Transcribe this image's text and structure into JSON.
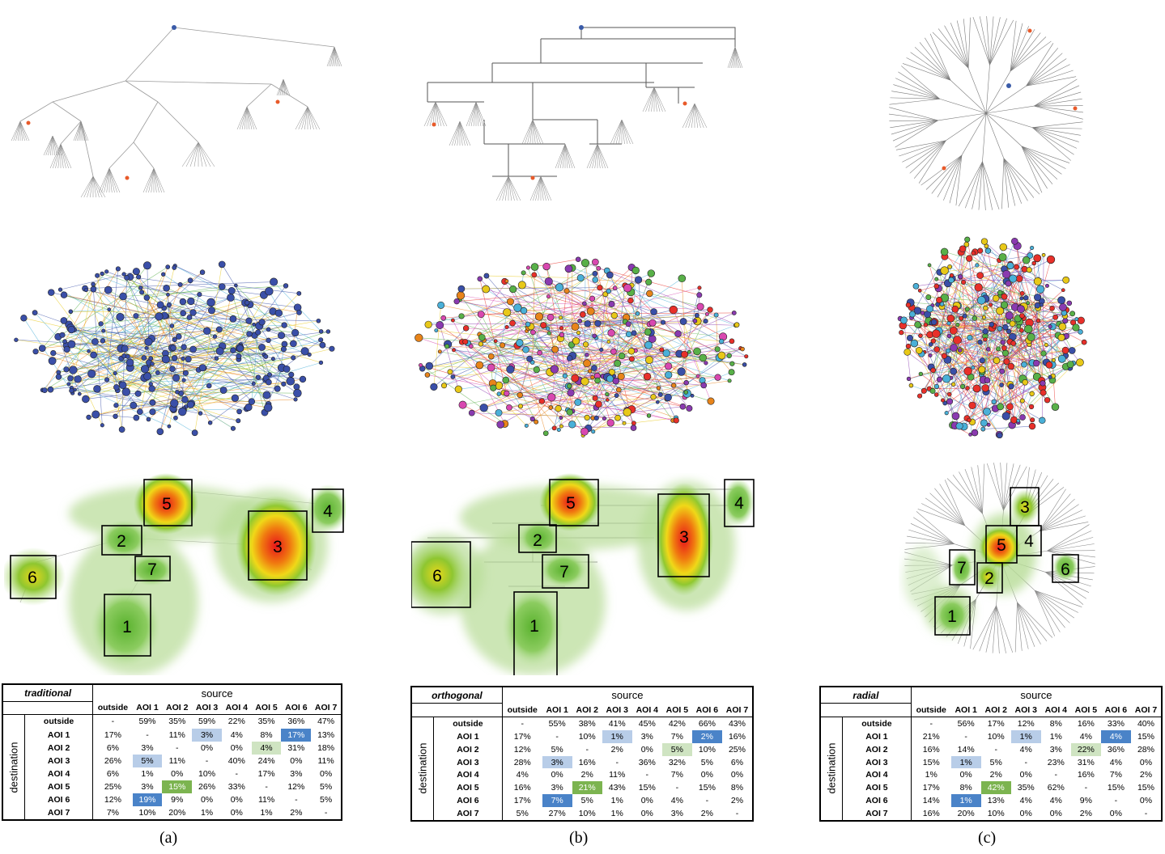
{
  "captions": [
    "(a)",
    "(b)",
    "(c)"
  ],
  "panels": [
    {
      "id": "a",
      "header": "traditional",
      "aois": [
        {
          "n": "1"
        },
        {
          "n": "2"
        },
        {
          "n": "3"
        },
        {
          "n": "4"
        },
        {
          "n": "5"
        },
        {
          "n": "6"
        },
        {
          "n": "7"
        }
      ]
    },
    {
      "id": "b",
      "header": "orthogonal",
      "aois": [
        {
          "n": "1"
        },
        {
          "n": "2"
        },
        {
          "n": "3"
        },
        {
          "n": "4"
        },
        {
          "n": "5"
        },
        {
          "n": "6"
        },
        {
          "n": "7"
        }
      ]
    },
    {
      "id": "c",
      "header": "radial",
      "aois": [
        {
          "n": "1"
        },
        {
          "n": "2"
        },
        {
          "n": "3"
        },
        {
          "n": "4"
        },
        {
          "n": "5"
        },
        {
          "n": "6"
        },
        {
          "n": "7"
        }
      ]
    }
  ],
  "table_common": {
    "source_label": "source",
    "destination_label": "destination",
    "columns": [
      "outside",
      "AOI 1",
      "AOI 2",
      "AOI 3",
      "AOI 4",
      "AOI 5",
      "AOI 6",
      "AOI 7"
    ],
    "rows": [
      "outside",
      "AOI 1",
      "AOI 2",
      "AOI 3",
      "AOI 4",
      "AOI 5",
      "AOI 6",
      "AOI 7"
    ]
  },
  "tables": [
    {
      "cells": [
        [
          "-",
          "59%",
          "35%",
          "59%",
          "22%",
          "35%",
          "36%",
          "47%"
        ],
        [
          "17%",
          "-",
          "11%",
          "3%",
          "4%",
          "8%",
          "17%",
          "13%"
        ],
        [
          "6%",
          "3%",
          "-",
          "0%",
          "0%",
          "4%",
          "31%",
          "18%"
        ],
        [
          "26%",
          "5%",
          "11%",
          "-",
          "40%",
          "24%",
          "0%",
          "11%"
        ],
        [
          "6%",
          "1%",
          "0%",
          "10%",
          "-",
          "17%",
          "3%",
          "0%"
        ],
        [
          "25%",
          "3%",
          "15%",
          "26%",
          "33%",
          "-",
          "12%",
          "5%"
        ],
        [
          "12%",
          "19%",
          "9%",
          "0%",
          "0%",
          "11%",
          "-",
          "5%"
        ],
        [
          "7%",
          "10%",
          "20%",
          "1%",
          "0%",
          "1%",
          "2%",
          "-"
        ]
      ],
      "highlights": [
        [
          1,
          3,
          "lb"
        ],
        [
          1,
          6,
          "db"
        ],
        [
          2,
          5,
          "lg"
        ],
        [
          3,
          1,
          "lb"
        ],
        [
          5,
          2,
          "dg"
        ],
        [
          6,
          1,
          "db"
        ]
      ]
    },
    {
      "cells": [
        [
          "-",
          "55%",
          "38%",
          "41%",
          "45%",
          "42%",
          "66%",
          "43%"
        ],
        [
          "17%",
          "-",
          "10%",
          "1%",
          "3%",
          "7%",
          "2%",
          "16%"
        ],
        [
          "12%",
          "5%",
          "-",
          "2%",
          "0%",
          "5%",
          "10%",
          "25%"
        ],
        [
          "28%",
          "3%",
          "16%",
          "-",
          "36%",
          "32%",
          "5%",
          "6%"
        ],
        [
          "4%",
          "0%",
          "2%",
          "11%",
          "-",
          "7%",
          "0%",
          "0%"
        ],
        [
          "16%",
          "3%",
          "21%",
          "43%",
          "15%",
          "-",
          "15%",
          "8%"
        ],
        [
          "17%",
          "7%",
          "5%",
          "1%",
          "0%",
          "4%",
          "-",
          "2%"
        ],
        [
          "5%",
          "27%",
          "10%",
          "1%",
          "0%",
          "3%",
          "2%",
          "-"
        ]
      ],
      "highlights": [
        [
          1,
          3,
          "lb"
        ],
        [
          1,
          6,
          "db"
        ],
        [
          2,
          5,
          "lg"
        ],
        [
          3,
          1,
          "lb"
        ],
        [
          5,
          2,
          "dg"
        ],
        [
          6,
          1,
          "db"
        ]
      ]
    },
    {
      "cells": [
        [
          "-",
          "56%",
          "17%",
          "12%",
          "8%",
          "16%",
          "33%",
          "40%"
        ],
        [
          "21%",
          "-",
          "10%",
          "1%",
          "1%",
          "4%",
          "4%",
          "15%"
        ],
        [
          "16%",
          "14%",
          "-",
          "4%",
          "3%",
          "22%",
          "36%",
          "28%"
        ],
        [
          "15%",
          "1%",
          "5%",
          "-",
          "23%",
          "31%",
          "4%",
          "0%"
        ],
        [
          "1%",
          "0%",
          "2%",
          "0%",
          "-",
          "16%",
          "7%",
          "2%"
        ],
        [
          "17%",
          "8%",
          "42%",
          "35%",
          "62%",
          "-",
          "15%",
          "15%"
        ],
        [
          "14%",
          "1%",
          "13%",
          "4%",
          "4%",
          "9%",
          "-",
          "0%"
        ],
        [
          "16%",
          "20%",
          "10%",
          "0%",
          "0%",
          "2%",
          "0%",
          "-"
        ]
      ],
      "highlights": [
        [
          1,
          3,
          "lb"
        ],
        [
          1,
          6,
          "db"
        ],
        [
          2,
          5,
          "lg"
        ],
        [
          3,
          1,
          "lb"
        ],
        [
          5,
          2,
          "dg"
        ],
        [
          6,
          1,
          "db"
        ]
      ]
    }
  ]
}
